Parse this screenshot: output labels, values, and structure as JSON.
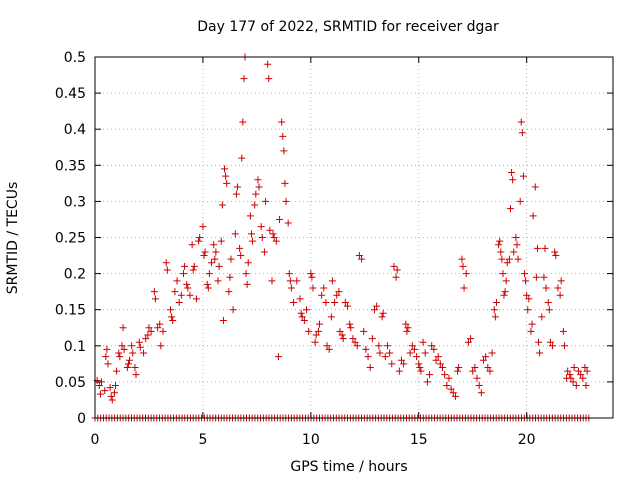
{
  "chart_data": {
    "type": "scatter",
    "title": "Day 177 of 2022, SRMTID for receiver dgar",
    "xlabel": "GPS time / hours",
    "ylabel": "SRMTID / TECUs",
    "xlim": [
      0,
      24
    ],
    "ylim": [
      0,
      0.5
    ],
    "x_ticks": [
      0,
      5,
      10,
      15,
      20
    ],
    "x_tick_labels": [
      "0",
      "5",
      "10",
      "15",
      "20"
    ],
    "y_ticks": [
      0,
      0.05,
      0.1,
      0.15,
      0.2,
      0.25,
      0.3,
      0.35,
      0.4,
      0.45,
      0.5
    ],
    "y_tick_labels": [
      "0",
      "0.05",
      "0.1",
      "0.15",
      "0.2",
      "0.25",
      "0.3",
      "0.35",
      "0.4",
      "0.45",
      "0.5"
    ],
    "grid": true,
    "marker": "+",
    "marker_color": "#cc0000",
    "zero_baseline": {
      "x_start": 0.0,
      "x_end": 22.9,
      "step": 0.13,
      "y": 0
    },
    "series": [
      {
        "name": "SRMTID",
        "points": [
          [
            0.1,
            0.052
          ],
          [
            0.2,
            0.045
          ],
          [
            0.25,
            0.033
          ],
          [
            0.3,
            0.05
          ],
          [
            0.45,
            0.038
          ],
          [
            0.5,
            0.085
          ],
          [
            0.55,
            0.095
          ],
          [
            0.6,
            0.075
          ],
          [
            0.7,
            0.042
          ],
          [
            0.75,
            0.03
          ],
          [
            0.8,
            0.025
          ],
          [
            0.9,
            0.035
          ],
          [
            0.95,
            0.045
          ],
          [
            1.0,
            0.065
          ],
          [
            1.1,
            0.09
          ],
          [
            1.15,
            0.085
          ],
          [
            1.25,
            0.1
          ],
          [
            1.3,
            0.125
          ],
          [
            1.35,
            0.095
          ],
          [
            1.5,
            0.07
          ],
          [
            1.55,
            0.075
          ],
          [
            1.6,
            0.08
          ],
          [
            1.7,
            0.1
          ],
          [
            1.75,
            0.09
          ],
          [
            1.85,
            0.07
          ],
          [
            1.9,
            0.06
          ],
          [
            2.05,
            0.105
          ],
          [
            2.1,
            0.098
          ],
          [
            2.25,
            0.09
          ],
          [
            2.35,
            0.11
          ],
          [
            2.45,
            0.115
          ],
          [
            2.5,
            0.125
          ],
          [
            2.6,
            0.12
          ],
          [
            2.75,
            0.175
          ],
          [
            2.8,
            0.165
          ],
          [
            2.9,
            0.125
          ],
          [
            3.0,
            0.13
          ],
          [
            3.05,
            0.1
          ],
          [
            3.15,
            0.12
          ],
          [
            3.3,
            0.215
          ],
          [
            3.35,
            0.205
          ],
          [
            3.5,
            0.15
          ],
          [
            3.55,
            0.14
          ],
          [
            3.6,
            0.135
          ],
          [
            3.7,
            0.175
          ],
          [
            3.8,
            0.19
          ],
          [
            3.9,
            0.16
          ],
          [
            4.0,
            0.17
          ],
          [
            4.1,
            0.2
          ],
          [
            4.15,
            0.21
          ],
          [
            4.25,
            0.185
          ],
          [
            4.3,
            0.18
          ],
          [
            4.4,
            0.17
          ],
          [
            4.5,
            0.24
          ],
          [
            4.55,
            0.205
          ],
          [
            4.6,
            0.21
          ],
          [
            4.7,
            0.165
          ],
          [
            4.8,
            0.245
          ],
          [
            4.85,
            0.25
          ],
          [
            5.0,
            0.265
          ],
          [
            5.05,
            0.225
          ],
          [
            5.1,
            0.23
          ],
          [
            5.2,
            0.185
          ],
          [
            5.25,
            0.18
          ],
          [
            5.3,
            0.2
          ],
          [
            5.4,
            0.215
          ],
          [
            5.5,
            0.24
          ],
          [
            5.55,
            0.22
          ],
          [
            5.6,
            0.23
          ],
          [
            5.7,
            0.19
          ],
          [
            5.75,
            0.21
          ],
          [
            5.85,
            0.245
          ],
          [
            5.9,
            0.295
          ],
          [
            5.95,
            0.135
          ],
          [
            6.0,
            0.345
          ],
          [
            6.05,
            0.335
          ],
          [
            6.1,
            0.325
          ],
          [
            6.2,
            0.175
          ],
          [
            6.25,
            0.195
          ],
          [
            6.3,
            0.22
          ],
          [
            6.4,
            0.15
          ],
          [
            6.5,
            0.255
          ],
          [
            6.55,
            0.31
          ],
          [
            6.6,
            0.32
          ],
          [
            6.7,
            0.235
          ],
          [
            6.75,
            0.225
          ],
          [
            6.8,
            0.36
          ],
          [
            6.85,
            0.41
          ],
          [
            6.9,
            0.47
          ],
          [
            6.95,
            0.5
          ],
          [
            7.0,
            0.2
          ],
          [
            7.05,
            0.185
          ],
          [
            7.1,
            0.215
          ],
          [
            7.2,
            0.28
          ],
          [
            7.25,
            0.255
          ],
          [
            7.3,
            0.245
          ],
          [
            7.4,
            0.295
          ],
          [
            7.45,
            0.31
          ],
          [
            7.55,
            0.33
          ],
          [
            7.6,
            0.32
          ],
          [
            7.7,
            0.265
          ],
          [
            7.75,
            0.25
          ],
          [
            7.85,
            0.23
          ],
          [
            7.9,
            0.3
          ],
          [
            8.0,
            0.49
          ],
          [
            8.05,
            0.47
          ],
          [
            8.1,
            0.26
          ],
          [
            8.2,
            0.19
          ],
          [
            8.25,
            0.255
          ],
          [
            8.3,
            0.25
          ],
          [
            8.4,
            0.245
          ],
          [
            8.5,
            0.085
          ],
          [
            8.55,
            0.275
          ],
          [
            8.65,
            0.41
          ],
          [
            8.7,
            0.39
          ],
          [
            8.75,
            0.37
          ],
          [
            8.8,
            0.325
          ],
          [
            8.85,
            0.3
          ],
          [
            8.95,
            0.27
          ],
          [
            9.0,
            0.2
          ],
          [
            9.05,
            0.19
          ],
          [
            9.1,
            0.18
          ],
          [
            9.2,
            0.16
          ],
          [
            9.35,
            0.19
          ],
          [
            9.5,
            0.165
          ],
          [
            9.55,
            0.145
          ],
          [
            9.6,
            0.14
          ],
          [
            9.7,
            0.135
          ],
          [
            9.8,
            0.15
          ],
          [
            9.9,
            0.12
          ],
          [
            10.0,
            0.2
          ],
          [
            10.05,
            0.195
          ],
          [
            10.1,
            0.18
          ],
          [
            10.2,
            0.105
          ],
          [
            10.25,
            0.115
          ],
          [
            10.35,
            0.12
          ],
          [
            10.4,
            0.13
          ],
          [
            10.5,
            0.17
          ],
          [
            10.6,
            0.18
          ],
          [
            10.7,
            0.16
          ],
          [
            10.75,
            0.1
          ],
          [
            10.85,
            0.095
          ],
          [
            10.95,
            0.14
          ],
          [
            11.0,
            0.19
          ],
          [
            11.1,
            0.16
          ],
          [
            11.2,
            0.17
          ],
          [
            11.3,
            0.175
          ],
          [
            11.35,
            0.12
          ],
          [
            11.45,
            0.115
          ],
          [
            11.5,
            0.11
          ],
          [
            11.6,
            0.16
          ],
          [
            11.7,
            0.155
          ],
          [
            11.8,
            0.13
          ],
          [
            11.85,
            0.125
          ],
          [
            11.95,
            0.11
          ],
          [
            12.05,
            0.105
          ],
          [
            12.15,
            0.1
          ],
          [
            12.25,
            0.225
          ],
          [
            12.35,
            0.22
          ],
          [
            12.45,
            0.12
          ],
          [
            12.55,
            0.095
          ],
          [
            12.65,
            0.085
          ],
          [
            12.75,
            0.07
          ],
          [
            12.85,
            0.11
          ],
          [
            12.95,
            0.15
          ],
          [
            13.05,
            0.155
          ],
          [
            13.15,
            0.1
          ],
          [
            13.2,
            0.09
          ],
          [
            13.3,
            0.14
          ],
          [
            13.35,
            0.145
          ],
          [
            13.45,
            0.085
          ],
          [
            13.55,
            0.1
          ],
          [
            13.65,
            0.09
          ],
          [
            13.75,
            0.075
          ],
          [
            13.85,
            0.21
          ],
          [
            13.95,
            0.195
          ],
          [
            14.0,
            0.205
          ],
          [
            14.1,
            0.065
          ],
          [
            14.2,
            0.08
          ],
          [
            14.3,
            0.075
          ],
          [
            14.4,
            0.13
          ],
          [
            14.45,
            0.12
          ],
          [
            14.5,
            0.125
          ],
          [
            14.6,
            0.09
          ],
          [
            14.7,
            0.1
          ],
          [
            14.8,
            0.095
          ],
          [
            14.9,
            0.085
          ],
          [
            15.0,
            0.075
          ],
          [
            15.05,
            0.07
          ],
          [
            15.1,
            0.065
          ],
          [
            15.2,
            0.105
          ],
          [
            15.3,
            0.09
          ],
          [
            15.4,
            0.05
          ],
          [
            15.5,
            0.06
          ],
          [
            15.6,
            0.1
          ],
          [
            15.7,
            0.095
          ],
          [
            15.8,
            0.08
          ],
          [
            15.9,
            0.085
          ],
          [
            16.0,
            0.075
          ],
          [
            16.1,
            0.07
          ],
          [
            16.2,
            0.06
          ],
          [
            16.3,
            0.045
          ],
          [
            16.4,
            0.055
          ],
          [
            16.5,
            0.04
          ],
          [
            16.6,
            0.035
          ],
          [
            16.7,
            0.03
          ],
          [
            16.8,
            0.065
          ],
          [
            16.85,
            0.07
          ],
          [
            17.0,
            0.22
          ],
          [
            17.05,
            0.21
          ],
          [
            17.1,
            0.18
          ],
          [
            17.2,
            0.2
          ],
          [
            17.3,
            0.105
          ],
          [
            17.4,
            0.11
          ],
          [
            17.5,
            0.065
          ],
          [
            17.6,
            0.07
          ],
          [
            17.7,
            0.055
          ],
          [
            17.8,
            0.045
          ],
          [
            17.9,
            0.035
          ],
          [
            18.0,
            0.08
          ],
          [
            18.1,
            0.085
          ],
          [
            18.2,
            0.07
          ],
          [
            18.3,
            0.065
          ],
          [
            18.4,
            0.09
          ],
          [
            18.5,
            0.15
          ],
          [
            18.55,
            0.14
          ],
          [
            18.6,
            0.16
          ],
          [
            18.7,
            0.24
          ],
          [
            18.75,
            0.245
          ],
          [
            18.8,
            0.23
          ],
          [
            18.85,
            0.22
          ],
          [
            18.9,
            0.2
          ],
          [
            18.95,
            0.17
          ],
          [
            19.0,
            0.175
          ],
          [
            19.05,
            0.19
          ],
          [
            19.1,
            0.215
          ],
          [
            19.2,
            0.22
          ],
          [
            19.25,
            0.29
          ],
          [
            19.3,
            0.34
          ],
          [
            19.35,
            0.33
          ],
          [
            19.4,
            0.23
          ],
          [
            19.5,
            0.25
          ],
          [
            19.55,
            0.24
          ],
          [
            19.6,
            0.22
          ],
          [
            19.7,
            0.3
          ],
          [
            19.75,
            0.41
          ],
          [
            19.8,
            0.395
          ],
          [
            19.85,
            0.335
          ],
          [
            19.9,
            0.2
          ],
          [
            19.95,
            0.19
          ],
          [
            20.0,
            0.17
          ],
          [
            20.05,
            0.15
          ],
          [
            20.1,
            0.165
          ],
          [
            20.2,
            0.12
          ],
          [
            20.25,
            0.13
          ],
          [
            20.3,
            0.28
          ],
          [
            20.4,
            0.32
          ],
          [
            20.45,
            0.195
          ],
          [
            20.5,
            0.235
          ],
          [
            20.55,
            0.105
          ],
          [
            20.6,
            0.09
          ],
          [
            20.7,
            0.14
          ],
          [
            20.8,
            0.195
          ],
          [
            20.85,
            0.235
          ],
          [
            20.9,
            0.18
          ],
          [
            21.0,
            0.16
          ],
          [
            21.05,
            0.15
          ],
          [
            21.1,
            0.105
          ],
          [
            21.2,
            0.1
          ],
          [
            21.3,
            0.23
          ],
          [
            21.35,
            0.225
          ],
          [
            21.45,
            0.18
          ],
          [
            21.55,
            0.17
          ],
          [
            21.6,
            0.19
          ],
          [
            21.7,
            0.12
          ],
          [
            21.75,
            0.1
          ],
          [
            21.85,
            0.055
          ],
          [
            21.9,
            0.065
          ],
          [
            22.0,
            0.06
          ],
          [
            22.05,
            0.055
          ],
          [
            22.15,
            0.05
          ],
          [
            22.2,
            0.07
          ],
          [
            22.3,
            0.045
          ],
          [
            22.4,
            0.065
          ],
          [
            22.5,
            0.06
          ],
          [
            22.6,
            0.055
          ],
          [
            22.7,
            0.07
          ],
          [
            22.75,
            0.045
          ],
          [
            22.8,
            0.065
          ]
        ]
      }
    ]
  }
}
